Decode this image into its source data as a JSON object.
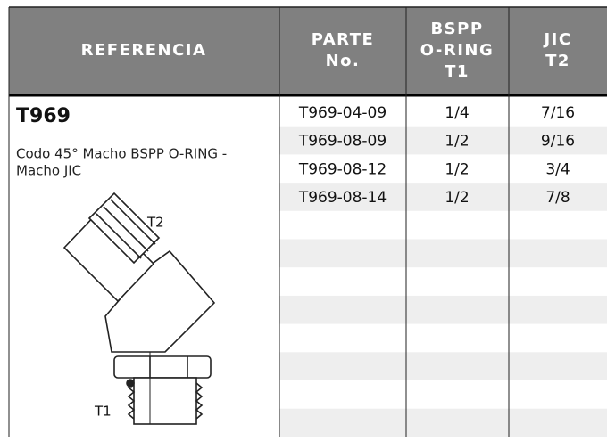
{
  "table": {
    "header": [
      [
        "REFERENCIA"
      ],
      [
        "PARTE",
        "No."
      ],
      [
        "BSPP",
        "O-RING",
        "T1"
      ],
      [
        "JIC",
        "T2"
      ]
    ],
    "rows": [
      [
        "T969-04-09",
        "1/4",
        "7/16"
      ],
      [
        "T969-08-09",
        "1/2",
        "9/16"
      ],
      [
        "T969-08-12",
        "1/2",
        "3/4"
      ],
      [
        "T969-08-14",
        "1/2",
        "7/8"
      ]
    ]
  },
  "product": {
    "code": "T969",
    "description": [
      "Codo 45° Macho BSPP O-RING -",
      "Macho JIC"
    ],
    "labels": {
      "top": "T2",
      "bottom": "T1"
    }
  }
}
